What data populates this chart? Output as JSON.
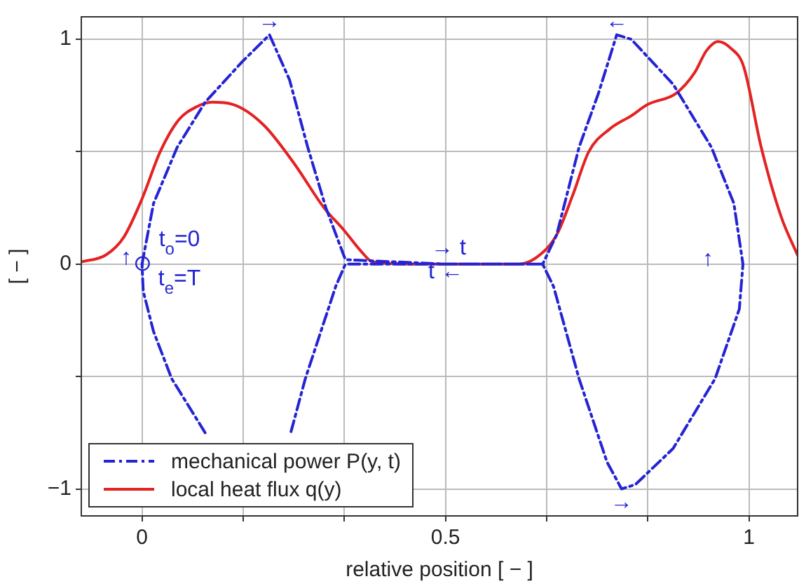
{
  "chart_data": {
    "type": "line",
    "xlabel": "relative position [ − ]",
    "ylabel": "[ − ]",
    "xlim": [
      -0.1,
      1.08
    ],
    "ylim": [
      -1.12,
      1.1
    ],
    "xticks": [
      0,
      {
        "value": 0.167,
        "label": null
      },
      {
        "value": 0.333,
        "label": null
      },
      0.5,
      {
        "value": 0.667,
        "label": null
      },
      {
        "value": 0.833,
        "label": null
      },
      1
    ],
    "yticks": [
      -1,
      {
        "value": -0.5,
        "label": null
      },
      0,
      {
        "value": 0.5,
        "label": null
      },
      1
    ],
    "grid": true,
    "legend": "bottom left",
    "series": [
      {
        "name": "mechanical power P(y, t)",
        "color": "#2424d4",
        "line_style": "dashed",
        "x": [
          0,
          0.019,
          0.058,
          0.104,
          0.165,
          0.21,
          0.243,
          0.273,
          0.303,
          0.335,
          0.5,
          0.66,
          0.683,
          0.72,
          0.752,
          0.782,
          0.806,
          0.875,
          0.938,
          0.975,
          0.99,
          0.984,
          0.944,
          0.875,
          0.813,
          0.79,
          0.766,
          0.72,
          0.678,
          0.66,
          0.5,
          0.335,
          0.319,
          0.269,
          0.245,
          0.175,
          0.104,
          0.049,
          0.019,
          0.002,
          0
        ],
        "values": [
          0,
          0.27,
          0.52,
          0.72,
          0.9,
          1.02,
          0.82,
          0.52,
          0.25,
          0.02,
          0,
          0,
          0.13,
          0.52,
          0.76,
          1.02,
          1.0,
          0.8,
          0.52,
          0.27,
          0,
          -0.2,
          -0.51,
          -0.82,
          -0.98,
          -1.0,
          -0.88,
          -0.51,
          -0.1,
          0,
          0,
          0,
          -0.1,
          -0.51,
          -0.75,
          null,
          -0.75,
          -0.51,
          -0.3,
          -0.12,
          0
        ]
      },
      {
        "name": "local heat flux q(y)",
        "color": "#e42222",
        "line_style": "solid",
        "x": [
          -0.1,
          -0.06,
          -0.03,
          0,
          0.03,
          0.06,
          0.09,
          0.115,
          0.15,
          0.2,
          0.25,
          0.3,
          0.333,
          0.36,
          0.38,
          0.45,
          0.55,
          0.62,
          0.65,
          0.683,
          0.71,
          0.736,
          0.77,
          0.806,
          0.833,
          0.88,
          0.91,
          0.93,
          0.949,
          0.97,
          0.991,
          1.02,
          1.053,
          1.08
        ],
        "values": [
          0.01,
          0.04,
          0.12,
          0.29,
          0.5,
          0.64,
          0.7,
          0.72,
          0.71,
          0.62,
          0.45,
          0.25,
          0.15,
          0.06,
          0.01,
          0,
          0,
          0,
          0.03,
          0.13,
          0.31,
          0.5,
          0.6,
          0.66,
          0.71,
          0.76,
          0.85,
          0.95,
          0.99,
          0.96,
          0.88,
          0.52,
          0.21,
          0.04
        ]
      }
    ],
    "annotations": [
      {
        "text": "→",
        "x": 0.21,
        "y": 1.02
      },
      {
        "text": "←",
        "x": 0.782,
        "y": 1.02
      },
      {
        "text": "→",
        "x": 0.79,
        "y": -1.0
      },
      {
        "text": "⊙",
        "x": 0,
        "y": 0
      },
      "↑",
      "t$_{o}$=0",
      "t$_{e}$=T",
      "→ t",
      "t ←",
      "↑"
    ]
  }
}
